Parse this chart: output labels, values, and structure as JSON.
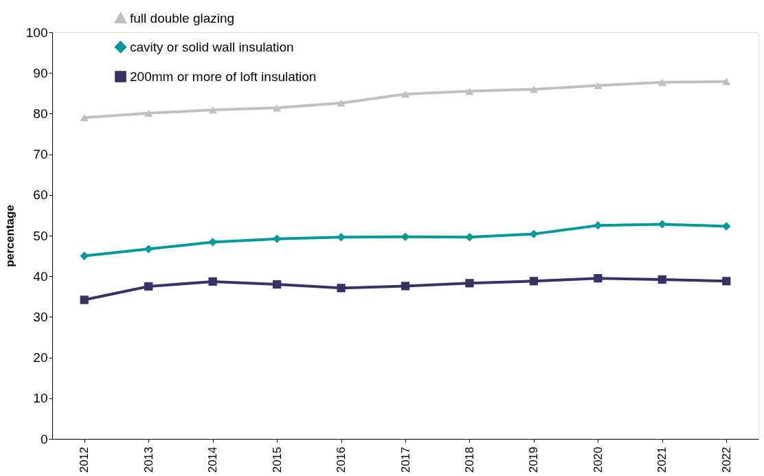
{
  "chart_data": {
    "type": "line",
    "ylabel": "percentage",
    "categories": [
      "2012",
      "2013",
      "2014",
      "2015",
      "2016",
      "2017",
      "2018",
      "2019",
      "2020",
      "2021",
      "2022"
    ],
    "series": [
      {
        "name": "full double glazing",
        "color": "#c0c0c0",
        "marker": "triangle",
        "values": [
          79.0,
          80.1,
          80.9,
          81.4,
          82.6,
          84.8,
          85.5,
          86.0,
          86.9,
          87.7,
          87.9
        ]
      },
      {
        "name": "cavity or solid wall insulation",
        "color": "#009999",
        "marker": "diamond",
        "values": [
          45.0,
          46.7,
          48.4,
          49.2,
          49.6,
          49.7,
          49.6,
          50.4,
          52.5,
          52.8,
          52.3
        ]
      },
      {
        "name": "200mm or more of loft insulation",
        "color": "#333366",
        "marker": "square",
        "values": [
          34.2,
          37.5,
          38.7,
          38.0,
          37.1,
          37.6,
          38.3,
          38.8,
          39.5,
          39.2,
          38.8
        ]
      }
    ],
    "ylim": [
      0,
      100
    ],
    "yticks": [
      0,
      10,
      20,
      30,
      40,
      50,
      60,
      70,
      80,
      90,
      100
    ],
    "grid": false,
    "legend": "top left",
    "line_style": "solid"
  }
}
